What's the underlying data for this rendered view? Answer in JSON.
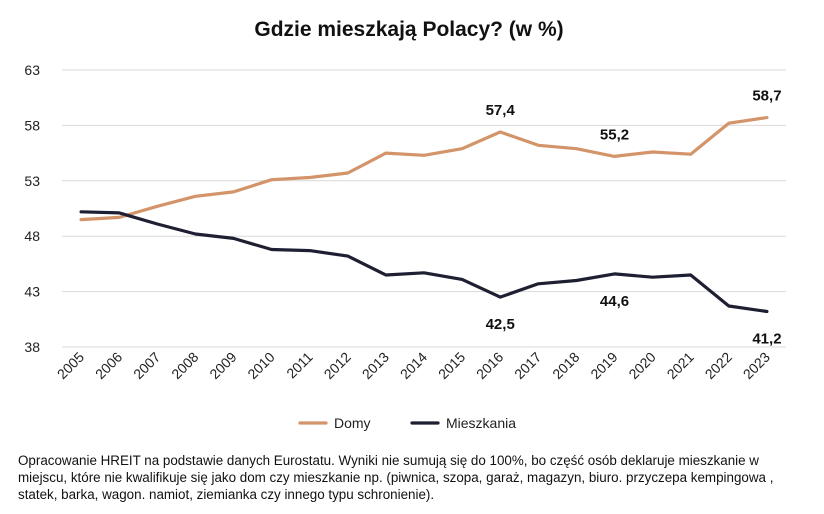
{
  "chart_data": {
    "type": "line",
    "title": "Gdzie mieszkają Polacy? (w %)",
    "xlabel": "",
    "ylabel": "",
    "x": [
      "2005",
      "2006",
      "2007",
      "2008",
      "2009",
      "2010",
      "2011",
      "2012",
      "2013",
      "2014",
      "2015",
      "2016",
      "2017",
      "2018",
      "2019",
      "2020",
      "2021",
      "2022",
      "2023"
    ],
    "yticks": [
      "63",
      "58",
      "53",
      "48",
      "43",
      "38"
    ],
    "ylim": [
      38,
      63
    ],
    "grid": true,
    "legend": "bottom",
    "series": [
      {
        "name": "Domy",
        "color": "#d4946a",
        "values": [
          49.5,
          49.7,
          50.7,
          51.6,
          52.0,
          53.1,
          53.3,
          53.7,
          55.5,
          55.3,
          55.9,
          57.4,
          56.2,
          55.9,
          55.2,
          55.6,
          55.4,
          58.2,
          58.7
        ]
      },
      {
        "name": "Mieszkania",
        "color": "#1f1f33",
        "values": [
          50.2,
          50.1,
          49.1,
          48.2,
          47.8,
          46.8,
          46.7,
          46.2,
          44.5,
          44.7,
          44.1,
          42.5,
          43.7,
          44.0,
          44.6,
          44.3,
          44.5,
          41.7,
          41.2
        ]
      }
    ],
    "annotations": [
      {
        "series": 0,
        "index": 11,
        "text": "57,4",
        "position": "above"
      },
      {
        "series": 0,
        "index": 14,
        "text": "55,2",
        "position": "above"
      },
      {
        "series": 0,
        "index": 18,
        "text": "58,7",
        "position": "above"
      },
      {
        "series": 1,
        "index": 11,
        "text": "42,5",
        "position": "below"
      },
      {
        "series": 1,
        "index": 14,
        "text": "44,6",
        "position": "below"
      },
      {
        "series": 1,
        "index": 18,
        "text": "41,2",
        "position": "below"
      }
    ]
  },
  "footnote": "Opracowanie HREIT na podstawie danych Eurostatu. Wyniki nie sumują się do 100%, bo część osób deklaruje mieszkanie w miejscu, które nie kwalifikuje się jako dom czy mieszkanie np. (piwnica, szopa, garaż, magazyn, biuro. przyczepa kempingowa , statek, barka, wagon. namiot, ziemianka czy innego typu schronienie)."
}
